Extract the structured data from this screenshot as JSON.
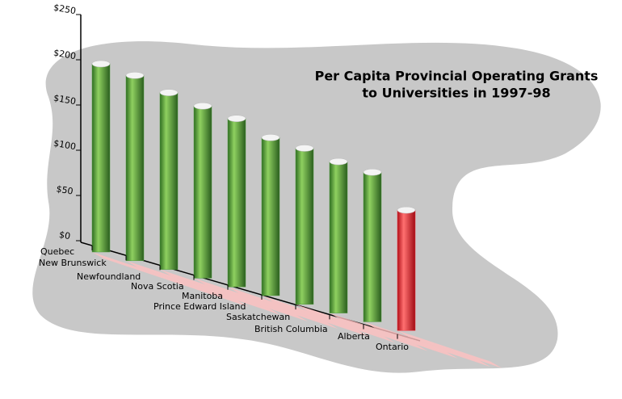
{
  "chart_data": {
    "type": "bar3d",
    "title": "Per Capita Provincial Operating Grants",
    "subtitle": "to Universities in 1997-98",
    "categories": [
      "Quebec",
      "New Brunswick",
      "Newfoundland",
      "Nova Scotia",
      "Manitoba",
      "Prince Edward Island",
      "Saskatchewan",
      "British Columbia",
      "Alberta",
      "Ontario"
    ],
    "values": [
      200,
      197,
      188,
      183,
      179,
      168,
      166,
      161,
      159,
      128
    ],
    "colors": [
      "#4f9a3c",
      "#4f9a3c",
      "#4f9a3c",
      "#4f9a3c",
      "#4f9a3c",
      "#4f9a3c",
      "#4f9a3c",
      "#4f9a3c",
      "#4f9a3c",
      "#f0303a"
    ],
    "ylim": [
      0,
      250
    ],
    "yticks": [
      {
        "value": 0,
        "label": "$0"
      },
      {
        "value": 50,
        "label": "$50"
      },
      {
        "value": 100,
        "label": "$100"
      },
      {
        "value": 150,
        "label": "$150"
      },
      {
        "value": 200,
        "label": "$200"
      },
      {
        "value": 250,
        "label": "$250"
      }
    ]
  }
}
